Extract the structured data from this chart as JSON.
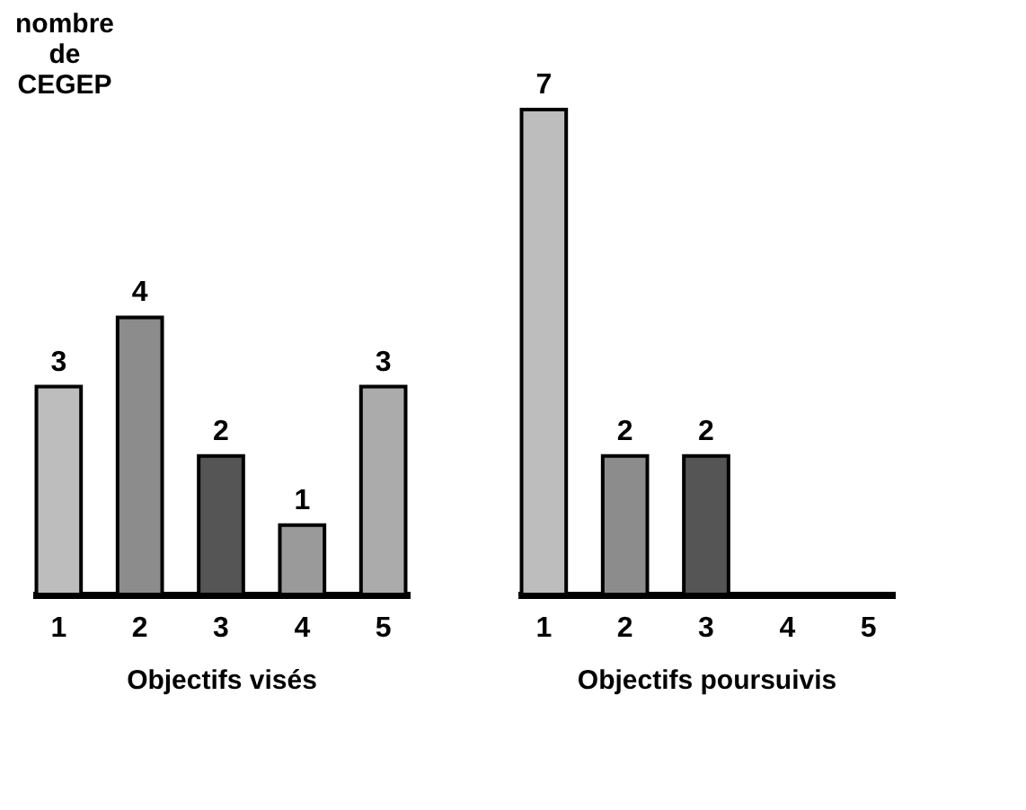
{
  "chart_data": [
    {
      "type": "bar",
      "ylabel": "nombre de CEGEP",
      "xlabel": "Objectifs visés",
      "categories": [
        "1",
        "2",
        "3",
        "4",
        "5"
      ],
      "values": [
        3,
        4,
        2,
        1,
        3
      ],
      "colors": [
        "#bdbdbd",
        "#8c8c8c",
        "#555555",
        "#9a9a9a",
        "#ababab"
      ],
      "data_labels": true,
      "tick_labels": "x"
    },
    {
      "type": "bar",
      "xlabel": "Objectifs poursuivis",
      "categories": [
        "1",
        "2",
        "3",
        "4",
        "5"
      ],
      "values": [
        7,
        2,
        2,
        0,
        0
      ],
      "colors": [
        "#bdbdbd",
        "#8c8c8c",
        "#555555",
        "#000000",
        "#000000"
      ],
      "value_labels": [
        "7",
        "2",
        "2",
        null,
        null
      ],
      "tick_labels": "x"
    }
  ]
}
